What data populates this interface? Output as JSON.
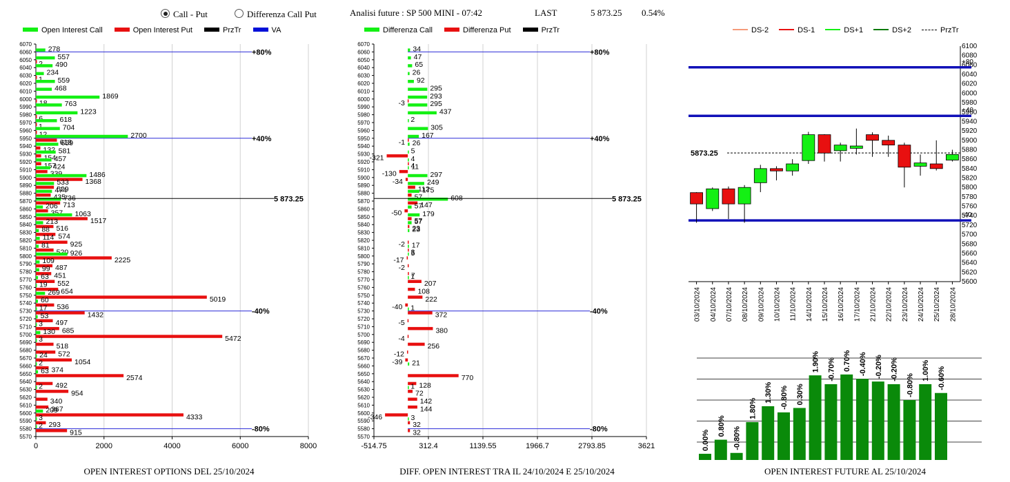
{
  "header": {
    "radio1": "Call - Put",
    "radio2": "Differenza Call Put",
    "analysis": "Analisi future : SP 500 MINI - 07:42",
    "last_label": "LAST",
    "last_value": "5 873.25",
    "change": "0.54%"
  },
  "legend1": [
    "Open Interest Call",
    "Open Interest Put",
    "PrzTr",
    "VA"
  ],
  "legend2": [
    "Differenza Call",
    "Differenza Put",
    "PrzTr"
  ],
  "legend3": [
    "DS-2",
    "DS-1",
    "DS+1",
    "DS+2",
    "PrzTr"
  ],
  "colors": {
    "call": "#14f014",
    "put": "#e81010",
    "va": "#0010d8",
    "dark_green": "#0a7a0a",
    "line": "#2a2ad8"
  },
  "chart_data": [
    {
      "type": "bar",
      "title": "OPEN INTEREST OPTIONS DEL 25/10/2024",
      "orientation": "horizontal",
      "categories": [
        6070,
        6060,
        6050,
        6040,
        6030,
        6020,
        6010,
        6000,
        5990,
        5980,
        5970,
        5960,
        5950,
        5940,
        5930,
        5920,
        5910,
        5900,
        5890,
        5880,
        5870,
        5860,
        5850,
        5840,
        5830,
        5820,
        5810,
        5800,
        5790,
        5780,
        5770,
        5760,
        5750,
        5740,
        5730,
        5720,
        5710,
        5700,
        5690,
        5680,
        5670,
        5660,
        5650,
        5640,
        5630,
        5620,
        5610,
        5600,
        5590,
        5580,
        5570
      ],
      "series": [
        {
          "name": "Open Interest Call",
          "values": [
            null,
            278,
            557,
            490,
            234,
            559,
            468,
            1869,
            763,
            1223,
            618,
            704,
            2700,
            659,
            581,
            457,
            424,
            1486,
            533,
            474,
            736,
            206,
            1063,
            213,
            88,
            114,
            81,
            926,
            109,
            99,
            63,
            19,
            269,
            60,
            17,
            53,
            3,
            130,
            3,
            null,
            24,
            2,
            63,
            null,
            2,
            null,
            null,
            209,
            3,
            2,
            null
          ]
        },
        {
          "name": "Open Interest Put",
          "values": [
            null,
            null,
            2,
            null,
            1,
            null,
            null,
            18,
            null,
            6,
            1,
            12,
            618,
            132,
            154,
            157,
            339,
            1368,
            529,
            435,
            713,
            357,
            1517,
            516,
            574,
            925,
            520,
            2225,
            487,
            451,
            552,
            654,
            5019,
            536,
            1432,
            497,
            685,
            5472,
            518,
            572,
            1054,
            374,
            2574,
            492,
            954,
            340,
            367,
            4333,
            293,
            915,
            null
          ]
        }
      ],
      "xlim": [
        0,
        8000
      ],
      "xticks": [
        "0",
        "2000",
        "4000",
        "6000",
        "8000"
      ],
      "price_line": {
        "value": 5873.25,
        "label": "5 873.25"
      },
      "level_lines": [
        {
          "strike": 6060,
          "label": "+80%"
        },
        {
          "strike": 5950,
          "label": "+40%"
        },
        {
          "strike": 5730,
          "label": "-40%"
        },
        {
          "strike": 5580,
          "label": "-80%"
        }
      ]
    },
    {
      "type": "bar",
      "title": "DIFF. OPEN INTEREST TRA IL 24/10/2024 E 25/10/2024",
      "orientation": "horizontal",
      "categories": [
        6070,
        6060,
        6050,
        6040,
        6030,
        6020,
        6010,
        6000,
        5990,
        5980,
        5970,
        5960,
        5950,
        5940,
        5930,
        5920,
        5910,
        5900,
        5890,
        5880,
        5870,
        5860,
        5850,
        5840,
        5830,
        5820,
        5810,
        5800,
        5790,
        5780,
        5770,
        5760,
        5750,
        5740,
        5730,
        5720,
        5710,
        5700,
        5690,
        5680,
        5670,
        5660,
        5650,
        5640,
        5630,
        5620,
        5610,
        5600,
        5590,
        5580,
        5570
      ],
      "series": [
        {
          "name": "Differenza Call",
          "values": [
            null,
            34,
            47,
            65,
            26,
            92,
            295,
            293,
            295,
            437,
            2,
            305,
            167,
            26,
            5,
            4,
            11,
            297,
            249,
            175,
            608,
            57,
            179,
            57,
            23,
            null,
            17,
            5,
            null,
            null,
            1,
            null,
            null,
            null,
            1,
            null,
            null,
            null,
            null,
            null,
            null,
            21,
            null,
            null,
            1,
            null,
            null,
            null,
            3,
            null,
            null
          ]
        },
        {
          "name": "Differenza Put",
          "values": [
            null,
            null,
            null,
            null,
            null,
            null,
            null,
            -3,
            null,
            null,
            null,
            null,
            -1,
            null,
            -321,
            4,
            -130,
            -34,
            112,
            57,
            147,
            -50,
            57,
            23,
            null,
            -2,
            3,
            -17,
            -2,
            7,
            207,
            108,
            222,
            -40,
            372,
            -5,
            380,
            -4,
            256,
            -12,
            -39,
            null,
            770,
            128,
            72,
            142,
            144,
            -346,
            32,
            32,
            null
          ]
        }
      ],
      "xlim": [
        -514.75,
        3621
      ],
      "xticks": [
        "-514.75",
        "312.4",
        "1139.55",
        "1966.7",
        "2793.85",
        "3621"
      ],
      "price_line": {
        "value": 5873.25,
        "label": "5 873.25"
      },
      "level_lines": [
        {
          "strike": 6060,
          "label": "+80%"
        },
        {
          "strike": 5950,
          "label": "+40%"
        },
        {
          "strike": 5730,
          "label": "-40%"
        },
        {
          "strike": 5580,
          "label": "-80%"
        }
      ]
    },
    {
      "type": "candlestick",
      "categories": [
        "03/10/2024",
        "04/10/2024",
        "07/10/2024",
        "08/10/2024",
        "09/10/2024",
        "10/10/2024",
        "11/10/2024",
        "14/10/2024",
        "15/10/2024",
        "16/10/2024",
        "17/10/2024",
        "21/10/2024",
        "22/10/2024",
        "23/10/2024",
        "24/10/2024",
        "25/10/2024",
        "28/10/2024"
      ],
      "open": [
        5789,
        5755,
        5797,
        5765,
        5810,
        5840,
        5835,
        5857,
        5912,
        5878,
        5883,
        5912,
        5900,
        5890,
        5845,
        5850,
        5858
      ],
      "close": [
        5765,
        5797,
        5765,
        5800,
        5840,
        5835,
        5850,
        5912,
        5873,
        5890,
        5888,
        5900,
        5890,
        5843,
        5852,
        5840,
        5870
      ],
      "high": [
        5790,
        5800,
        5802,
        5805,
        5848,
        5845,
        5860,
        5918,
        5913,
        5895,
        5925,
        5917,
        5910,
        5895,
        5870,
        5900,
        5880
      ],
      "low": [
        5725,
        5750,
        5733,
        5725,
        5790,
        5815,
        5825,
        5850,
        5855,
        5855,
        5870,
        5865,
        5865,
        5800,
        5825,
        5836,
        5855
      ],
      "ylim": [
        5600,
        6100
      ],
      "ytick_step": 20,
      "price_line": {
        "value": 5873.25,
        "label": "5873.25"
      },
      "level_lines": [
        {
          "value": 6055,
          "label": "+80"
        },
        {
          "value": 5952,
          "label": "+40"
        },
        {
          "value": 5730,
          "label": "-40"
        }
      ]
    },
    {
      "type": "bar",
      "title": "OPEN INTEREST FUTURE AL 25/10/2024",
      "labels": [
        "0.00%",
        "0.80%",
        "-0.80%",
        "1.80%",
        "1.30%",
        "-0.80%",
        "0.30%",
        "1.90%",
        "-0.70%",
        "0.70%",
        "-0.40%",
        "-0.20%",
        "-0.20%",
        "-0.80%",
        "1.00%",
        "-0.60%"
      ],
      "values": [
        7,
        23,
        8,
        43,
        61,
        54,
        59,
        96,
        86,
        97,
        92,
        89,
        86,
        68,
        86,
        76
      ]
    }
  ]
}
